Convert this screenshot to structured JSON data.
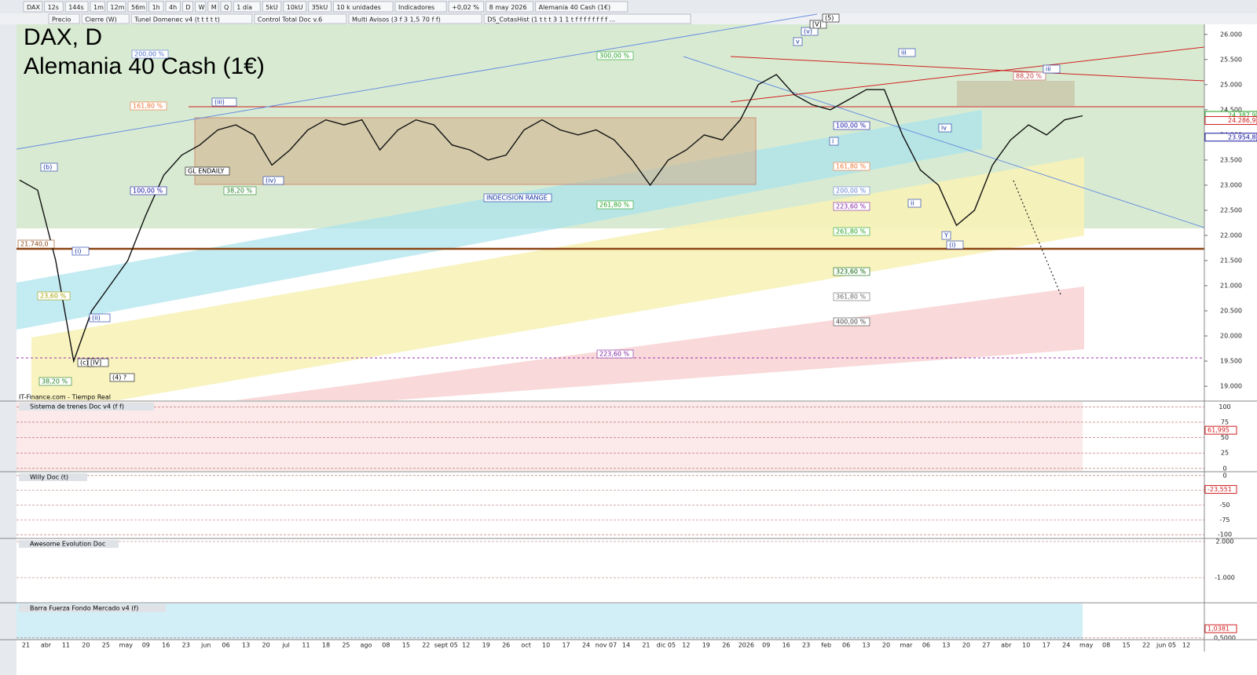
{
  "toolbar": {
    "items": [
      "DAX",
      "12s",
      "144s",
      "1m",
      "12m",
      "56m",
      "1h",
      "4h",
      "D",
      "W",
      "M",
      "Q",
      "1 día",
      "5kU",
      "10kU",
      "35kU",
      "10 k unidades",
      "Indicadores",
      "+0,02 %",
      "8 may 2026",
      "Alemania 40 Cash (1€)"
    ]
  },
  "studies": {
    "items": [
      "Precio",
      "Cierre (W)",
      "Tunel Domenec v4 (t t t t t)",
      "Control Total Doc v.6",
      "Multi Avisos (3 f 3 1,5 70 f f)",
      "DS_CotasHist (1 t t t 3 1 1 t f f f f f f f f ..."
    ]
  },
  "chart_data": {
    "type": "line",
    "title": "DAX, D",
    "subtitle": "Alemania 40 Cash (1€)",
    "source": "IT-Finance.com - Tiempo Real",
    "color": "#111111",
    "values": [
      23100,
      22900,
      21500,
      19500,
      20500,
      21000,
      21500,
      22400,
      23200,
      23600,
      23800,
      24100,
      24200,
      24000,
      23400,
      23700,
      24100,
      24300,
      24200,
      24300,
      23700,
      24100,
      24300,
      24200,
      23800,
      23700,
      23500,
      23600,
      24100,
      24300,
      24100,
      24000,
      24100,
      23900,
      23500,
      23000,
      23500,
      23700,
      24000,
      23900,
      24300,
      25000,
      25200,
      24800,
      24600,
      24500,
      24700,
      24900,
      24900,
      24000,
      23300,
      23000,
      22200,
      22500,
      23400,
      23900,
      24200,
      24000,
      24300,
      24380
    ],
    "ylim": [
      18720,
      26200
    ],
    "yticks": [
      {
        "value": 19000,
        "label": "19.000"
      },
      {
        "value": 19500,
        "label": "19.500"
      },
      {
        "value": 20000,
        "label": "20.000"
      },
      {
        "value": 20500,
        "label": "20.500"
      },
      {
        "value": 21000,
        "label": "21.000"
      },
      {
        "value": 21500,
        "label": "21.500"
      },
      {
        "value": 22000,
        "label": "22.000"
      },
      {
        "value": 22500,
        "label": "22.500"
      },
      {
        "value": 23000,
        "label": "23.000"
      },
      {
        "value": 23500,
        "label": "23.500"
      },
      {
        "value": 24000,
        "label": "24.000"
      },
      {
        "value": 24500,
        "label": "24.500"
      },
      {
        "value": 25000,
        "label": "25.000"
      },
      {
        "value": 25500,
        "label": "25.500"
      },
      {
        "value": 26000,
        "label": "26.000"
      }
    ],
    "price_labels": [
      {
        "value": 24387.9,
        "label": "24.387,9"
      },
      {
        "value": 24286.9,
        "label": "24.286,9"
      },
      {
        "value": 23954.8,
        "label": "23.954,8"
      }
    ],
    "xlabels": [
      "21",
      "abr",
      "11",
      "20",
      "25",
      "may",
      "09",
      "16",
      "23",
      "jun",
      "06",
      "13",
      "20",
      "jul",
      "11",
      "18",
      "25",
      "ago",
      "08",
      "15",
      "22",
      "sept 05",
      "12",
      "19",
      "26",
      "oct",
      "10",
      "17",
      "24",
      "nov 07",
      "14",
      "21",
      "dic 05",
      "12",
      "19",
      "26",
      "2026",
      "09",
      "16",
      "23",
      "feb",
      "06",
      "13",
      "20",
      "mar",
      "06",
      "13",
      "20",
      "27",
      "abr",
      "10",
      "17",
      "24",
      "may",
      "08",
      "15",
      "22",
      "jun 05",
      "12"
    ],
    "annotations": [
      "161,80 %",
      "200,00 %",
      "100,00 %",
      "38,20 %",
      "300,00 %",
      "INDECISION RANGE",
      "261,80 %",
      "223,60 %",
      "100,00 %",
      "161,80 %",
      "200,00 %",
      "223,60 %",
      "261,80 %",
      "323,60 %",
      "361,80 %",
      "400,00 %",
      "88,20 %",
      "23,60 %",
      "38,20 %",
      "21.740,0",
      "GL ENDAILY",
      "(iii)",
      "(b)",
      "(iv)",
      "(i)",
      "(ii)",
      "(c)",
      "[IV]",
      "(4) ?",
      "v",
      "(v)",
      "[V]",
      "(5)",
      "iii",
      "iv",
      "i",
      "ii",
      "Y",
      "(i)",
      "iii"
    ]
  },
  "panels": [
    {
      "title": "Sistema de trenes Doc v4 (f f)",
      "ylim": [
        -4,
        108
      ],
      "yticks": [
        0,
        25,
        50,
        75,
        100
      ],
      "current": {
        "value": 61.995,
        "label": "61,995"
      }
    },
    {
      "title": "Willy Doc (t)",
      "ylim": [
        -105,
        5
      ],
      "yticks": [
        0,
        -25,
        -50,
        -75,
        -100
      ],
      "current": {
        "value": -23.551,
        "label": "-23,551"
      }
    },
    {
      "title": "Awesome Evolution Doc",
      "ylim": [
        -3022,
        2196
      ],
      "yticks": [
        {
          "value": 2000,
          "label": "2.000"
        },
        {
          "value": -1000,
          "label": "-1.000"
        }
      ]
    },
    {
      "title": "Barra Fuerza Fondo Mercado v4 (f)",
      "ylim": [
        0.4,
        2.5
      ],
      "yticks": [
        {
          "value": 0.5,
          "label": "0,5000"
        }
      ],
      "current": {
        "value": 1.0381,
        "label": "1,0381"
      }
    }
  ]
}
